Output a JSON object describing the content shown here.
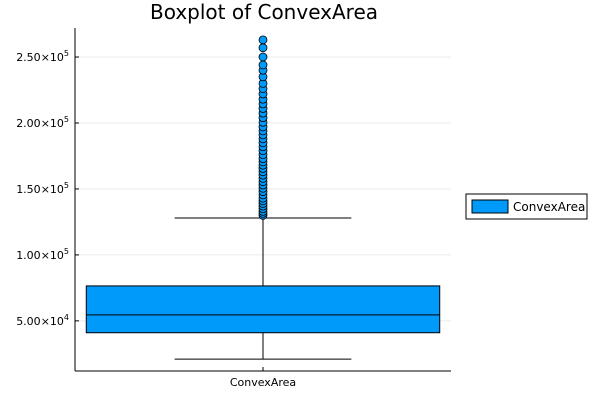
{
  "chart_data": {
    "type": "box",
    "title": "Boxplot of ConvexArea",
    "xlabel": "",
    "ylabel": "",
    "categories": [
      "ConvexArea"
    ],
    "ylim": [
      12000,
      272000
    ],
    "yticks": [
      {
        "value": 50000,
        "mantissa": "5.00",
        "base": "×10",
        "exp": "4"
      },
      {
        "value": 100000,
        "mantissa": "1.00",
        "base": "×10",
        "exp": "5"
      },
      {
        "value": 150000,
        "mantissa": "1.50",
        "base": "×10",
        "exp": "5"
      },
      {
        "value": 200000,
        "mantissa": "2.00",
        "base": "×10",
        "exp": "5"
      },
      {
        "value": 250000,
        "mantissa": "2.50",
        "base": "×10",
        "exp": "5"
      }
    ],
    "grid": true,
    "legend": {
      "position": "right",
      "entries": [
        {
          "name": "ConvexArea",
          "color": "#009AFA"
        }
      ]
    },
    "series": [
      {
        "name": "ConvexArea",
        "color": "#009AFA",
        "whisker_low": 21000,
        "q1": 41000,
        "median": 54500,
        "q3": 76500,
        "whisker_high": 128000,
        "outliers": [
          130000,
          131500,
          133000,
          135000,
          137000,
          139000,
          141000,
          143000,
          145500,
          148000,
          150500,
          153000,
          155500,
          158000,
          160500,
          163000,
          165500,
          168000,
          170500,
          173000,
          176000,
          179000,
          182000,
          185000,
          188000,
          191000,
          194000,
          197000,
          200500,
          204000,
          207500,
          211000,
          214500,
          218000,
          222000,
          226000,
          230000,
          235000,
          240000,
          244000,
          250000,
          257000,
          263000
        ]
      }
    ]
  }
}
